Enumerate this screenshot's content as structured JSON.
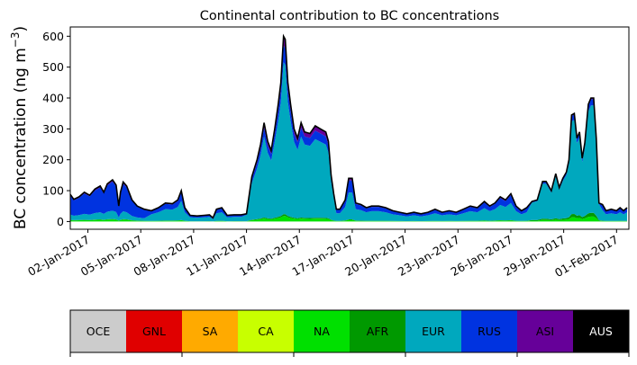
{
  "chart_data": {
    "type": "area",
    "title": "Continental contribution to BC concentrations",
    "ylabel_main": "BC concentration (ng m",
    "ylabel_sup": "−3",
    "ylabel_tail": ")",
    "xlabel": "",
    "ylim": [
      -25,
      630
    ],
    "xlim": [
      0,
      31.7
    ],
    "yticks": [
      0,
      100,
      200,
      300,
      400,
      500,
      600
    ],
    "ytick_labels": [
      "0",
      "100",
      "200",
      "300",
      "400",
      "500",
      "600"
    ],
    "xticks": [
      1,
      4,
      7,
      10,
      13,
      16,
      19,
      22,
      25,
      28,
      31
    ],
    "xtick_labels": [
      "02-Jan-2017",
      "05-Jan-2017",
      "08-Jan-2017",
      "11-Jan-2017",
      "14-Jan-2017",
      "17-Jan-2017",
      "20-Jan-2017",
      "23-Jan-2017",
      "26-Jan-2017",
      "29-Jan-2017",
      "01-Feb-2017"
    ],
    "x_start": "01-Jan-2017",
    "stack_order": [
      "OCE",
      "GNL",
      "SA",
      "CA",
      "NA",
      "AFR",
      "EUR",
      "RUS",
      "ASI",
      "AUS"
    ],
    "series_colors": {
      "OCE": "#cccccc",
      "GNL": "#e00000",
      "SA": "#ffaa00",
      "CA": "#c8ff00",
      "NA": "#00e000",
      "AFR": "#009900",
      "EUR": "#00a8be",
      "RUS": "#0033e0",
      "ASI": "#660099",
      "AUS": "#000000"
    },
    "total_line_color": "#000000",
    "total": [
      [
        0.0,
        88
      ],
      [
        0.2,
        72
      ],
      [
        0.5,
        80
      ],
      [
        0.8,
        95
      ],
      [
        1.1,
        85
      ],
      [
        1.4,
        105
      ],
      [
        1.7,
        115
      ],
      [
        1.9,
        95
      ],
      [
        2.1,
        122
      ],
      [
        2.4,
        135
      ],
      [
        2.6,
        118
      ],
      [
        2.75,
        50
      ],
      [
        2.85,
        95
      ],
      [
        3.0,
        128
      ],
      [
        3.2,
        115
      ],
      [
        3.5,
        70
      ],
      [
        3.8,
        50
      ],
      [
        4.2,
        40
      ],
      [
        4.6,
        35
      ],
      [
        5.0,
        45
      ],
      [
        5.4,
        60
      ],
      [
        5.8,
        58
      ],
      [
        6.1,
        70
      ],
      [
        6.3,
        100
      ],
      [
        6.5,
        45
      ],
      [
        6.8,
        20
      ],
      [
        7.2,
        18
      ],
      [
        7.6,
        20
      ],
      [
        7.9,
        22
      ],
      [
        8.1,
        12
      ],
      [
        8.3,
        40
      ],
      [
        8.6,
        45
      ],
      [
        8.9,
        20
      ],
      [
        9.3,
        22
      ],
      [
        9.7,
        22
      ],
      [
        10.0,
        25
      ],
      [
        10.3,
        145
      ],
      [
        10.6,
        200
      ],
      [
        10.8,
        250
      ],
      [
        11.0,
        320
      ],
      [
        11.2,
        260
      ],
      [
        11.4,
        230
      ],
      [
        11.6,
        300
      ],
      [
        11.8,
        380
      ],
      [
        11.95,
        450
      ],
      [
        12.1,
        600
      ],
      [
        12.2,
        590
      ],
      [
        12.35,
        450
      ],
      [
        12.5,
        380
      ],
      [
        12.7,
        300
      ],
      [
        12.9,
        270
      ],
      [
        13.1,
        320
      ],
      [
        13.3,
        290
      ],
      [
        13.6,
        285
      ],
      [
        13.9,
        310
      ],
      [
        14.2,
        300
      ],
      [
        14.5,
        290
      ],
      [
        14.65,
        260
      ],
      [
        14.8,
        150
      ],
      [
        14.95,
        90
      ],
      [
        15.1,
        40
      ],
      [
        15.3,
        40
      ],
      [
        15.6,
        70
      ],
      [
        15.8,
        140
      ],
      [
        16.0,
        140
      ],
      [
        16.2,
        60
      ],
      [
        16.5,
        55
      ],
      [
        16.8,
        45
      ],
      [
        17.1,
        50
      ],
      [
        17.5,
        50
      ],
      [
        17.9,
        45
      ],
      [
        18.3,
        35
      ],
      [
        18.7,
        30
      ],
      [
        19.1,
        25
      ],
      [
        19.5,
        30
      ],
      [
        19.9,
        25
      ],
      [
        20.3,
        30
      ],
      [
        20.7,
        40
      ],
      [
        21.1,
        30
      ],
      [
        21.5,
        35
      ],
      [
        21.9,
        30
      ],
      [
        22.3,
        40
      ],
      [
        22.7,
        50
      ],
      [
        23.1,
        45
      ],
      [
        23.5,
        65
      ],
      [
        23.8,
        50
      ],
      [
        24.1,
        60
      ],
      [
        24.4,
        80
      ],
      [
        24.7,
        70
      ],
      [
        25.0,
        90
      ],
      [
        25.3,
        50
      ],
      [
        25.6,
        35
      ],
      [
        25.9,
        45
      ],
      [
        26.2,
        65
      ],
      [
        26.5,
        70
      ],
      [
        26.8,
        130
      ],
      [
        27.0,
        130
      ],
      [
        27.3,
        100
      ],
      [
        27.55,
        155
      ],
      [
        27.75,
        110
      ],
      [
        27.95,
        140
      ],
      [
        28.15,
        160
      ],
      [
        28.3,
        200
      ],
      [
        28.45,
        345
      ],
      [
        28.6,
        350
      ],
      [
        28.75,
        270
      ],
      [
        28.9,
        290
      ],
      [
        29.05,
        205
      ],
      [
        29.2,
        255
      ],
      [
        29.4,
        380
      ],
      [
        29.55,
        400
      ],
      [
        29.7,
        400
      ],
      [
        29.85,
        270
      ],
      [
        30.0,
        60
      ],
      [
        30.2,
        55
      ],
      [
        30.4,
        35
      ],
      [
        30.7,
        40
      ],
      [
        31.0,
        35
      ],
      [
        31.2,
        45
      ],
      [
        31.4,
        35
      ],
      [
        31.6,
        45
      ]
    ],
    "legend": {
      "type": "colorbar",
      "position": "bottom",
      "labels": [
        "OCE",
        "GNL",
        "SA",
        "CA",
        "NA",
        "AFR",
        "EUR",
        "RUS",
        "ASI",
        "AUS"
      ],
      "text_colors": [
        "#000000",
        "#000000",
        "#000000",
        "#000000",
        "#000000",
        "#000000",
        "#000000",
        "#000000",
        "#000000",
        "#ffffff"
      ]
    }
  }
}
